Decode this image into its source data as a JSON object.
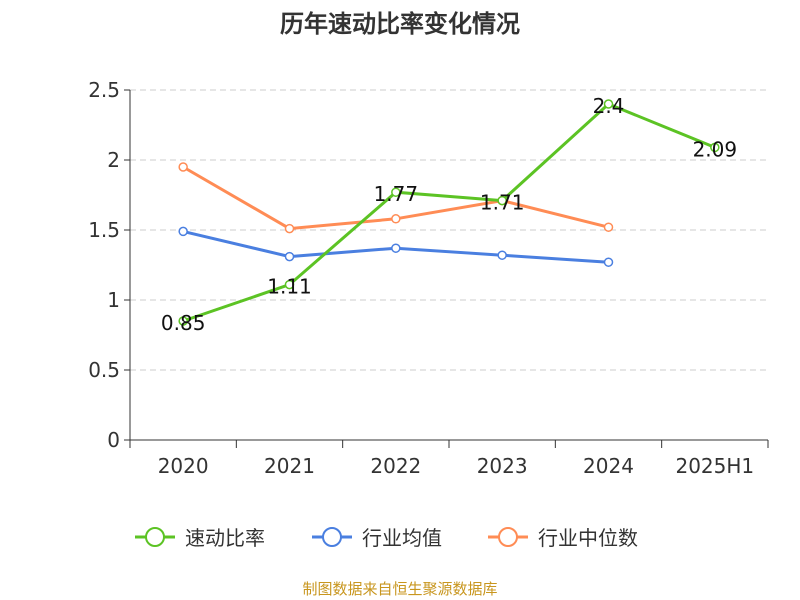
{
  "chart_data": {
    "type": "line",
    "title": "历年速动比率变化情况",
    "categories": [
      "2020",
      "2021",
      "2022",
      "2023",
      "2024",
      "2025H1"
    ],
    "ylim": [
      0,
      2.5
    ],
    "yticks": [
      "0",
      "0.5",
      "1",
      "1.5",
      "2",
      "2.5"
    ],
    "grid": true,
    "legend_position": "bottom",
    "series": [
      {
        "name": "速动比率",
        "color": "#5cc324",
        "values": [
          0.85,
          1.11,
          1.77,
          1.71,
          2.4,
          2.09
        ],
        "labels": [
          "0.85",
          "1.11",
          "1.77",
          "1.71",
          "2.4",
          "2.09"
        ]
      },
      {
        "name": "行业均值",
        "color": "#4a7fe0",
        "values": [
          1.49,
          1.31,
          1.37,
          1.32,
          1.27,
          null
        ]
      },
      {
        "name": "行业中位数",
        "color": "#ff8c55",
        "values": [
          1.95,
          1.51,
          1.58,
          1.71,
          1.52,
          null
        ]
      }
    ]
  },
  "source": "制图数据来自恒生聚源数据库"
}
